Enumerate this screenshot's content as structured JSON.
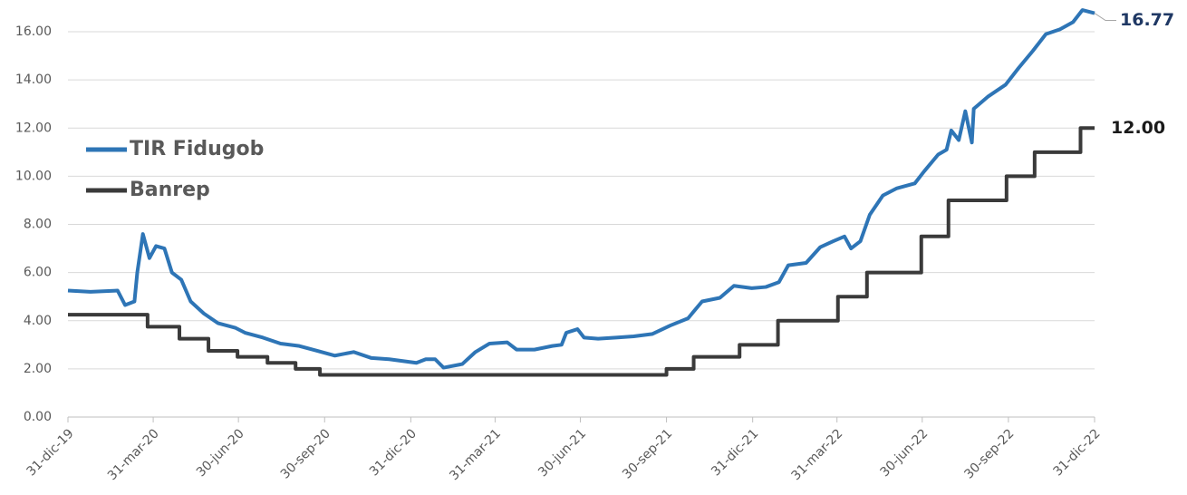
{
  "chart_data": {
    "type": "line",
    "xlim": [
      "2019-12-31",
      "2022-12-31"
    ],
    "xticks": [
      {
        "value": "2019-12-31",
        "label": "31-dic-19"
      },
      {
        "value": "2020-03-31",
        "label": "31-mar-20"
      },
      {
        "value": "2020-06-30",
        "label": "30-jun-20"
      },
      {
        "value": "2020-09-30",
        "label": "30-sep-20"
      },
      {
        "value": "2020-12-31",
        "label": "31-dic-20"
      },
      {
        "value": "2021-03-31",
        "label": "31-mar-21"
      },
      {
        "value": "2021-06-30",
        "label": "30-jun-21"
      },
      {
        "value": "2021-09-30",
        "label": "30-sep-21"
      },
      {
        "value": "2021-12-31",
        "label": "31-dic-21"
      },
      {
        "value": "2022-03-31",
        "label": "31-mar-22"
      },
      {
        "value": "2022-06-30",
        "label": "30-jun-22"
      },
      {
        "value": "2022-09-30",
        "label": "30-sep-22"
      },
      {
        "value": "2022-12-31",
        "label": "31-dic-22"
      }
    ],
    "ylim": [
      0,
      16
    ],
    "yticks": [
      {
        "value": 0,
        "label": "0.00"
      },
      {
        "value": 2,
        "label": "2.00"
      },
      {
        "value": 4,
        "label": "4.00"
      },
      {
        "value": 6,
        "label": "6.00"
      },
      {
        "value": 8,
        "label": "8.00"
      },
      {
        "value": 10,
        "label": "10.00"
      },
      {
        "value": 12,
        "label": "12.00"
      },
      {
        "value": 14,
        "label": "14.00"
      },
      {
        "value": 16,
        "label": "16.00"
      }
    ],
    "grid": true,
    "legend": "upper left",
    "series": [
      {
        "name": "TIR Fidugob",
        "color": "#2e75b6",
        "step": false,
        "end_label": "16.77",
        "end_label_color": "#1f3864",
        "x": [
          "2019-12-31",
          "2020-01-24",
          "2020-02-22",
          "2020-03-01",
          "2020-03-11",
          "2020-03-14",
          "2020-03-20",
          "2020-03-27",
          "2020-04-03",
          "2020-04-12",
          "2020-04-20",
          "2020-04-30",
          "2020-05-10",
          "2020-05-24",
          "2020-06-08",
          "2020-06-27",
          "2020-07-07",
          "2020-07-26",
          "2020-08-14",
          "2020-09-03",
          "2020-09-22",
          "2020-10-11",
          "2020-10-31",
          "2020-11-19",
          "2020-12-08",
          "2021-01-06",
          "2021-01-16",
          "2021-01-26",
          "2021-02-04",
          "2021-02-24",
          "2021-03-10",
          "2021-03-25",
          "2021-04-13",
          "2021-04-23",
          "2021-05-12",
          "2021-05-31",
          "2021-06-10",
          "2021-06-15",
          "2021-06-27",
          "2021-07-04",
          "2021-07-19",
          "2021-08-07",
          "2021-08-26",
          "2021-09-15",
          "2021-10-04",
          "2021-10-23",
          "2021-11-07",
          "2021-11-26",
          "2021-12-11",
          "2021-12-30",
          "2022-01-14",
          "2022-01-28",
          "2022-02-07",
          "2022-02-26",
          "2022-03-13",
          "2022-03-27",
          "2022-04-08",
          "2022-04-15",
          "2022-04-25",
          "2022-05-05",
          "2022-05-19",
          "2022-06-03",
          "2022-06-22",
          "2022-07-02",
          "2022-07-17",
          "2022-07-26",
          "2022-07-31",
          "2022-08-08",
          "2022-08-15",
          "2022-08-22",
          "2022-08-24",
          "2022-09-08",
          "2022-09-27",
          "2022-10-11",
          "2022-10-26",
          "2022-11-09",
          "2022-11-24",
          "2022-12-08",
          "2022-12-18",
          "2022-12-31"
        ],
        "values": [
          5.25,
          5.2,
          5.25,
          4.65,
          4.8,
          6.0,
          7.6,
          6.6,
          7.1,
          7.0,
          6.0,
          5.7,
          4.8,
          4.3,
          3.9,
          3.7,
          3.5,
          3.3,
          3.05,
          2.95,
          2.75,
          2.55,
          2.7,
          2.45,
          2.4,
          2.25,
          2.4,
          2.4,
          2.05,
          2.2,
          2.7,
          3.05,
          3.1,
          2.8,
          2.8,
          2.95,
          3.0,
          3.5,
          3.65,
          3.3,
          3.25,
          3.3,
          3.35,
          3.45,
          3.8,
          4.1,
          4.8,
          4.95,
          5.45,
          5.35,
          5.4,
          5.6,
          6.3,
          6.4,
          7.05,
          7.3,
          7.5,
          7.0,
          7.3,
          8.4,
          9.2,
          9.5,
          9.7,
          10.2,
          10.9,
          11.1,
          11.9,
          11.5,
          12.7,
          11.4,
          12.8,
          13.3,
          13.8,
          14.5,
          15.2,
          15.9,
          16.1,
          16.4,
          16.9,
          16.77
        ]
      },
      {
        "name": "Banrep",
        "color": "#3a3a3a",
        "step": true,
        "end_label": "12.00",
        "end_label_color": "#1a1a1a",
        "x": [
          "2019-12-31",
          "2020-03-25",
          "2020-04-28",
          "2020-05-29",
          "2020-06-29",
          "2020-07-31",
          "2020-08-30",
          "2020-09-25",
          "2021-09-30",
          "2021-10-29",
          "2021-12-17",
          "2022-01-27",
          "2022-04-01",
          "2022-05-02",
          "2022-06-29",
          "2022-07-28",
          "2022-09-28",
          "2022-10-28",
          "2022-12-16",
          "2022-12-31"
        ],
        "values": [
          4.25,
          3.75,
          3.25,
          2.75,
          2.5,
          2.25,
          2.0,
          1.75,
          2.0,
          2.5,
          3.0,
          4.0,
          5.0,
          6.0,
          7.5,
          9.0,
          10.0,
          11.0,
          12.0,
          12.0
        ]
      }
    ]
  }
}
